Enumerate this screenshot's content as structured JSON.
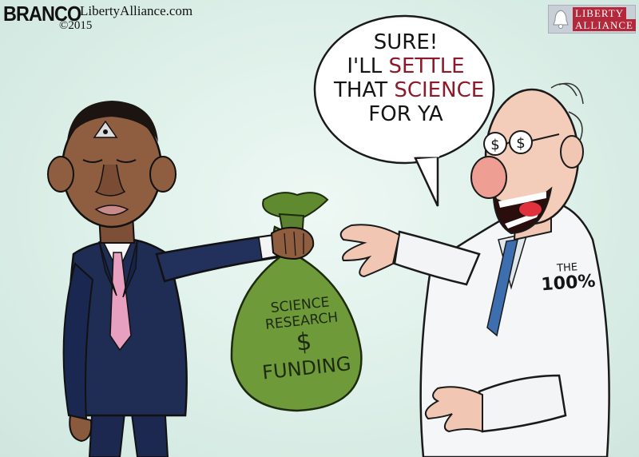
{
  "credit": {
    "artist": "BRANCO",
    "site": "LibertyAlliance.com",
    "year": "©2015"
  },
  "logo": {
    "line1": "LIBERTY",
    "line2": "ALLIANCE"
  },
  "speech_bubble": {
    "lines": [
      {
        "pre": "SURE!",
        "em": "",
        "post": ""
      },
      {
        "pre": "I'LL ",
        "em": "SETTLE",
        "post": ""
      },
      {
        "pre": "THAT ",
        "em": "SCIENCE",
        "post": ""
      },
      {
        "pre": "FOR YA",
        "em": "",
        "post": ""
      }
    ]
  },
  "money_bag": {
    "line1": "SCIENCE",
    "line2": "RESEARCH",
    "symbol": "$",
    "line3": "FUNDING"
  },
  "coat_label": {
    "line1": "THE",
    "line2": "100%"
  },
  "colors": {
    "background": "#dcefe8",
    "suit": "#1f2d55",
    "tie": "#e7a0c0",
    "bag": "#6f9a3a",
    "coat": "#f4f6f8",
    "accent_red": "#8b1a2a"
  }
}
